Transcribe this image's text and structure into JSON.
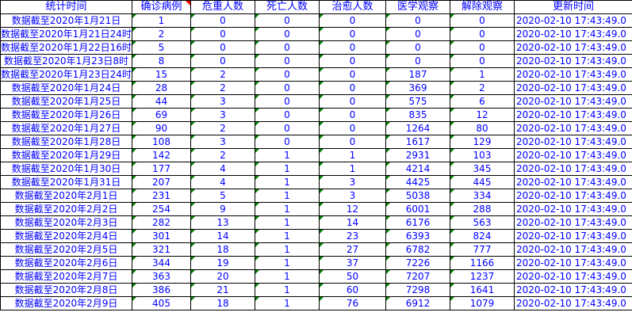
{
  "headers": [
    "统计时间",
    "确诊病例",
    "危重人数",
    "死亡人数",
    "治愈人数",
    "医学观察",
    "解除观察",
    "更新时间"
  ],
  "rows": [
    [
      "数据截至2020年1月21日",
      "1",
      "0",
      "0",
      "0",
      "0",
      "0",
      "2020-02-10 17:43:49.0"
    ],
    [
      "数据截至2020年1月21日24时",
      "2",
      "0",
      "0",
      "0",
      "0",
      "0",
      "2020-02-10 17:43:49.0"
    ],
    [
      "数据截至2020年1月22日16时",
      "5",
      "0",
      "0",
      "0",
      "0",
      "0",
      "2020-02-10 17:43:49.0"
    ],
    [
      "数据截至2020年1月23日8时",
      "8",
      "0",
      "0",
      "0",
      "0",
      "0",
      "2020-02-10 17:43:49.0"
    ],
    [
      "数据截至2020年1月23日24时",
      "15",
      "2",
      "0",
      "0",
      "187",
      "1",
      "2020-02-10 17:43:49.0"
    ],
    [
      "数据截至2020年1月24日",
      "28",
      "2",
      "0",
      "0",
      "369",
      "2",
      "2020-02-10 17:43:49.0"
    ],
    [
      "数据截至2020年1月25日",
      "44",
      "3",
      "0",
      "0",
      "575",
      "6",
      "2020-02-10 17:43:49.0"
    ],
    [
      "数据截至2020年1月26日",
      "69",
      "3",
      "0",
      "0",
      "835",
      "12",
      "2020-02-10 17:43:49.0"
    ],
    [
      "数据截至2020年1月27日",
      "90",
      "2",
      "0",
      "0",
      "1264",
      "80",
      "2020-02-10 17:43:49.0"
    ],
    [
      "数据截至2020年1月28日",
      "108",
      "3",
      "0",
      "0",
      "1617",
      "129",
      "2020-02-10 17:43:49.0"
    ],
    [
      "数据截至2020年1月29日",
      "142",
      "2",
      "1",
      "1",
      "2931",
      "103",
      "2020-02-10 17:43:49.0"
    ],
    [
      "数据截至2020年1月30日",
      "177",
      "4",
      "1",
      "1",
      "4214",
      "345",
      "2020-02-10 17:43:49.0"
    ],
    [
      "数据截至2020年1月31日",
      "207",
      "4",
      "1",
      "3",
      "4425",
      "445",
      "2020-02-10 17:43:49.0"
    ],
    [
      "数据截至2020年2月1日",
      "231",
      "5",
      "1",
      "3",
      "5038",
      "334",
      "2020-02-10 17:43:49.0"
    ],
    [
      "数据截至2020年2月2日",
      "254",
      "9",
      "1",
      "12",
      "6001",
      "288",
      "2020-02-10 17:43:49.0"
    ],
    [
      "数据截至2020年2月3日",
      "282",
      "13",
      "1",
      "14",
      "6176",
      "563",
      "2020-02-10 17:43:49.0"
    ],
    [
      "数据截至2020年2月4日",
      "301",
      "14",
      "1",
      "23",
      "6393",
      "824",
      "2020-02-10 17:43:49.0"
    ],
    [
      "数据截至2020年2月5日",
      "321",
      "18",
      "1",
      "27",
      "6782",
      "777",
      "2020-02-10 17:43:49.0"
    ],
    [
      "数据截至2020年2月6日",
      "344",
      "19",
      "1",
      "37",
      "7226",
      "1166",
      "2020-02-10 17:43:49.0"
    ],
    [
      "数据截至2020年2月7日",
      "363",
      "20",
      "1",
      "50",
      "7207",
      "1237",
      "2020-02-10 17:43:49.0"
    ],
    [
      "数据截至2020年2月8日",
      "386",
      "21",
      "1",
      "60",
      "7298",
      "1641",
      "2020-02-10 17:43:49.0"
    ],
    [
      "数据截至2020年2月9日",
      "405",
      "18",
      "1",
      "76",
      "6912",
      "1079",
      "2020-02-10 17:43:49.0"
    ]
  ],
  "colors": {
    "text": "#0000ff",
    "grid": "#000000",
    "indicator": "#008000",
    "header_marker": "#ff0000"
  },
  "icons": {
    "cell_indicator": "green-triangle-flag",
    "header_marker": "red-corner-marker"
  }
}
